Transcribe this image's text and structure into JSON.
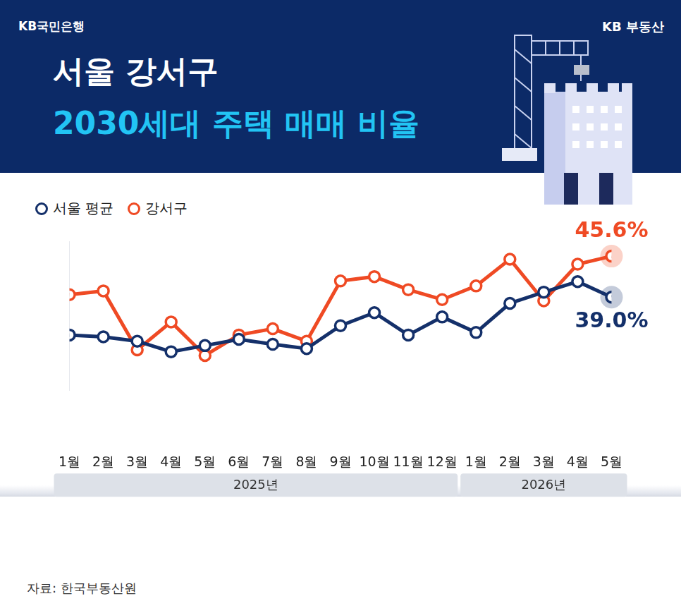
{
  "chart_data": {
    "type": "line",
    "title": "서울 강서구",
    "subtitle": "2030세대 주택 매매 비율",
    "header_left": "KB국민은행",
    "header_right": "KB 부동산",
    "source": "자료: 한국부동산원",
    "categories": [
      "1월",
      "2월",
      "3월",
      "4월",
      "5월",
      "6월",
      "7월",
      "8월",
      "9월",
      "10월",
      "11월",
      "12월",
      "1월",
      "2월",
      "3월",
      "4월",
      "5월"
    ],
    "year_groups": [
      {
        "label": "2025년",
        "count": 12
      },
      {
        "label": "2026년",
        "count": 5
      }
    ],
    "series": [
      {
        "name": "서울 평균",
        "color": "#14306a",
        "values": [
          32.9,
          32.6,
          31.9,
          30.2,
          31.2,
          32.2,
          31.4,
          30.7,
          34.4,
          36.5,
          32.9,
          35.8,
          33.3,
          38.0,
          39.8,
          41.5,
          39.0
        ],
        "value_labels": [
          null,
          null,
          null,
          null,
          null,
          null,
          null,
          null,
          null,
          null,
          null,
          null,
          null,
          null,
          null,
          null,
          "39.0%"
        ]
      },
      {
        "name": "강서구",
        "color": "#ef4a24",
        "values": [
          39.4,
          40.0,
          30.5,
          35.0,
          29.6,
          32.9,
          33.9,
          31.9,
          41.6,
          42.3,
          40.2,
          38.6,
          40.8,
          45.1,
          38.4,
          44.3,
          45.6
        ],
        "value_labels": [
          null,
          null,
          null,
          null,
          null,
          null,
          null,
          null,
          null,
          null,
          null,
          null,
          null,
          null,
          null,
          null,
          "45.6%"
        ]
      }
    ],
    "ylim": [
      24,
      48
    ],
    "yticks": [],
    "tick_labels": "x",
    "grid": false,
    "legend": "top-left",
    "marker": "circle",
    "line_style": "solid"
  }
}
